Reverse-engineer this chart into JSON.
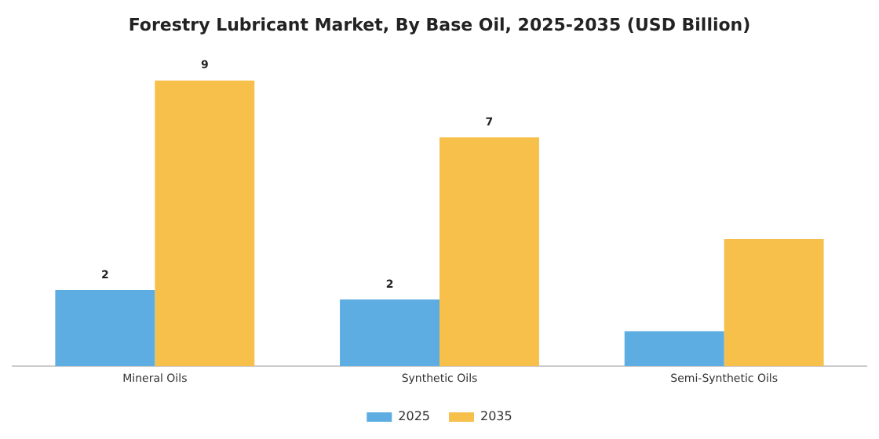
{
  "chart_data": {
    "type": "bar",
    "title": "Forestry Lubricant Market, By Base Oil, 2025-2035 (USD Billion)",
    "categories": [
      "Mineral Oils",
      "Synthetic Oils",
      "Semi-Synthetic Oils"
    ],
    "series": [
      {
        "name": "2025",
        "color": "#5dade2",
        "values": [
          2.4,
          2.1,
          1.1
        ],
        "value_labels": [
          "2",
          "2",
          null
        ]
      },
      {
        "name": "2035",
        "color": "#f7c04a",
        "values": [
          9.0,
          7.2,
          4.0
        ],
        "value_labels": [
          "9",
          "7",
          null
        ]
      }
    ],
    "grid": false,
    "legend": "bottom"
  }
}
